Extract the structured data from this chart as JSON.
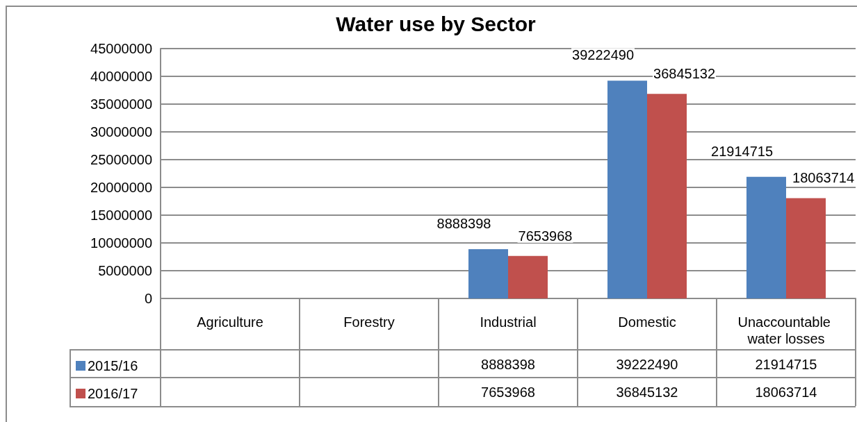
{
  "chart_data": {
    "type": "bar",
    "title": "Water use by Sector",
    "categories": [
      "Agriculture",
      "Forestry",
      "Industrial",
      "Domestic",
      "Unaccountable water losses"
    ],
    "series": [
      {
        "name": "2015/16",
        "color": "#4f81bd",
        "values": [
          null,
          null,
          8888398,
          39222490,
          21914715
        ],
        "value_labels": [
          null,
          null,
          "8888398",
          "39222490",
          "21914715"
        ]
      },
      {
        "name": "2016/17",
        "color": "#c0504d",
        "values": [
          null,
          null,
          7653968,
          36845132,
          18063714
        ],
        "value_labels": [
          null,
          null,
          "7653968",
          "36845132",
          "18063714"
        ]
      }
    ],
    "ylim": [
      0,
      45000000
    ],
    "yticks": [
      0,
      5000000,
      10000000,
      15000000,
      20000000,
      25000000,
      30000000,
      35000000,
      40000000,
      45000000
    ],
    "grid": "y",
    "legend": "bottom",
    "data_labels": true
  }
}
